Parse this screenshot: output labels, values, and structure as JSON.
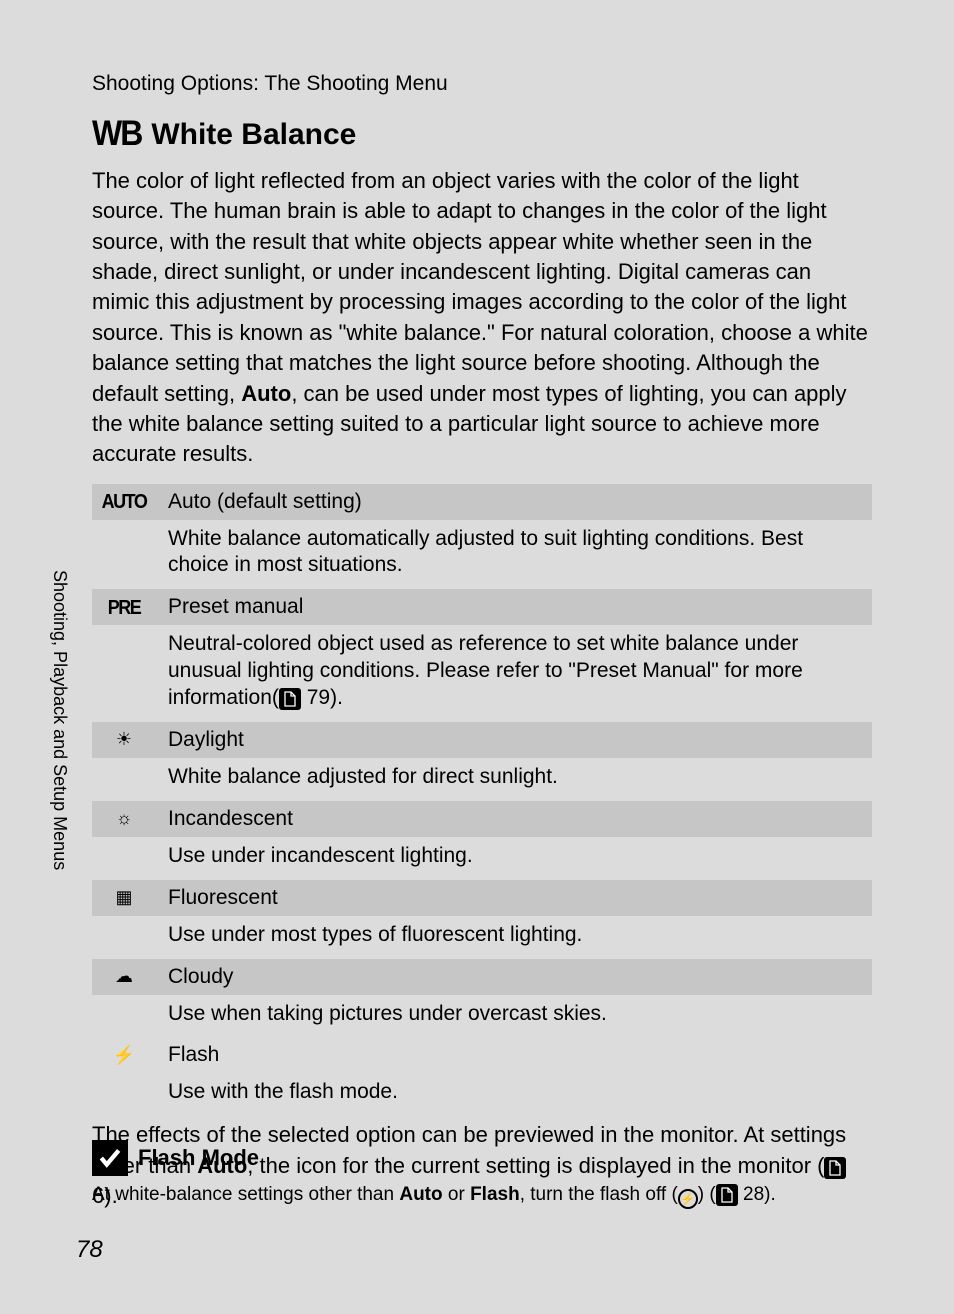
{
  "breadcrumb": "Shooting Options: The Shooting Menu",
  "side_tab": "Shooting, Playback and Setup Menus",
  "heading": {
    "icon": "WB",
    "title": "White Balance"
  },
  "intro": {
    "p1a": "The color of light reflected from an object varies with the color of the light source. The human brain is able to adapt to changes in the color of the light source, with the result that white objects appear white whether seen in the shade, direct sunlight, or under incandescent lighting. Digital cameras can mimic this adjustment by processing images according to the color of the light source. This is known as \"white balance.\" For natural coloration, choose a white balance setting that matches the light source before shooting. Although the default setting, ",
    "p1_bold": "Auto",
    "p1b": ", can be used under most types of lighting, you can apply the white balance setting suited to a particular light source to achieve more accurate results."
  },
  "options": [
    {
      "icon_text": "AUTO",
      "icon_class": "glyph-auto",
      "label": "Auto (default setting)",
      "desc": "White balance automatically adjusted to suit lighting conditions. Best choice in most situations."
    },
    {
      "icon_text": "PRE",
      "icon_class": "glyph-pre",
      "label": "Preset manual",
      "desc_pre": "Neutral-colored object used as reference to set white balance under unusual lighting conditions. Please refer to \"Preset Manual\" for more information(",
      "ref": "79",
      "desc_post": ")."
    },
    {
      "icon_text": "☀",
      "icon_class": "",
      "label": "Daylight",
      "desc": "White balance adjusted for direct sunlight."
    },
    {
      "icon_text": "☼",
      "icon_class": "",
      "label": "Incandescent",
      "desc": "Use under incandescent lighting."
    },
    {
      "icon_text": "▦",
      "icon_class": "",
      "label": "Fluorescent",
      "desc": "Use under most types of fluorescent lighting."
    },
    {
      "icon_text": "☁",
      "icon_class": "",
      "label": "Cloudy",
      "desc": "Use when taking pictures under overcast skies."
    },
    {
      "icon_text": "⚡",
      "icon_class": "",
      "label": "Flash",
      "desc": "Use with the flash mode.",
      "last": true
    }
  ],
  "outro": {
    "a": "The effects of the selected option can be previewed in the monitor. At settings other than ",
    "bold": "Auto",
    "b": ", the icon for the current setting is displayed in the monitor (",
    "ref": "6",
    "c": ")."
  },
  "note": {
    "title": "Flash Mode",
    "body_a": "At white-balance settings other than ",
    "bold1": "Auto",
    "mid": " or ",
    "bold2": "Flash",
    "body_b": ", turn the flash off (",
    "flash_glyph": "⚡",
    "body_c": ") (",
    "ref": "28",
    "body_d": ")."
  },
  "page_number": "78"
}
